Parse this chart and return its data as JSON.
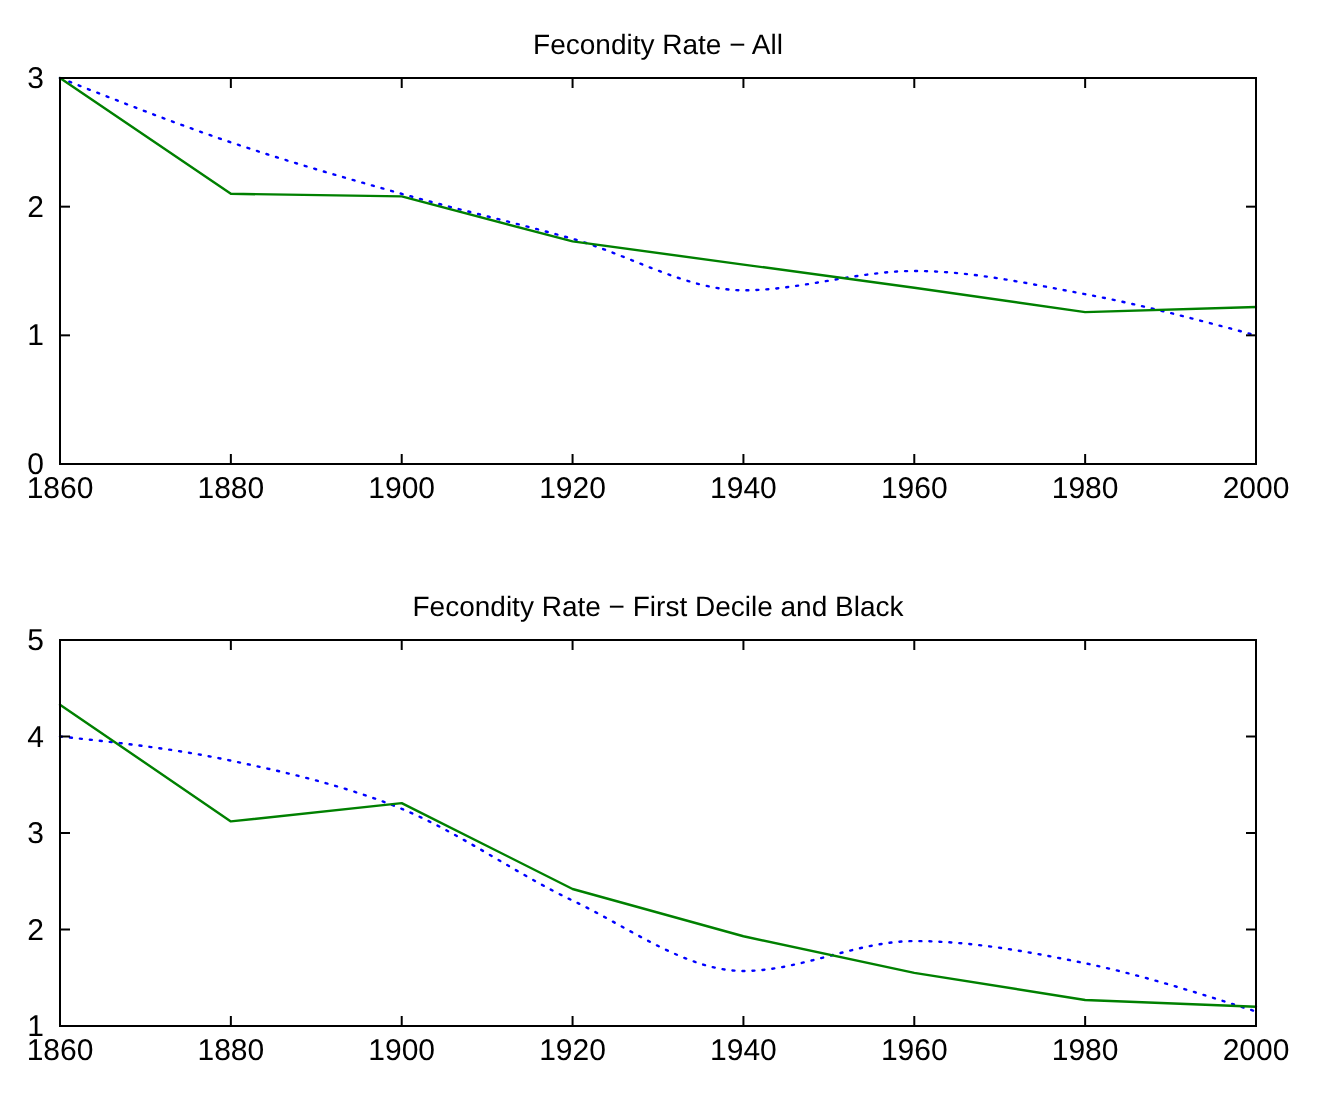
{
  "chart_data": [
    {
      "type": "line",
      "title": "Fecondity Rate − All",
      "x": [
        1860,
        1880,
        1900,
        1920,
        1940,
        1960,
        1980,
        2000
      ],
      "xlim": [
        1860,
        2000
      ],
      "xticks": [
        1860,
        1880,
        1900,
        1920,
        1940,
        1960,
        1980,
        2000
      ],
      "ylim": [
        0,
        3
      ],
      "yticks": [
        0,
        1,
        2,
        3
      ],
      "grid": false,
      "series": [
        {
          "color": "#0000ff",
          "line_style": "dotted",
          "values": [
            3.0,
            2.5,
            2.1,
            1.75,
            1.35,
            1.5,
            1.32,
            1.0
          ]
        },
        {
          "color": "#008000",
          "line_style": "solid",
          "values": [
            3.0,
            2.1,
            2.08,
            1.73,
            1.55,
            1.37,
            1.18,
            1.22
          ]
        }
      ]
    },
    {
      "type": "line",
      "title": "Fecondity Rate − First Decile and Black",
      "x": [
        1860,
        1880,
        1900,
        1920,
        1940,
        1960,
        1980,
        2000
      ],
      "xlim": [
        1860,
        2000
      ],
      "xticks": [
        1860,
        1880,
        1900,
        1920,
        1940,
        1960,
        1980,
        2000
      ],
      "ylim": [
        1,
        5
      ],
      "yticks": [
        1,
        2,
        3,
        4,
        5
      ],
      "grid": false,
      "series": [
        {
          "color": "#0000ff",
          "line_style": "dotted",
          "values": [
            4.0,
            3.75,
            3.25,
            2.3,
            1.57,
            1.88,
            1.65,
            1.15
          ]
        },
        {
          "color": "#008000",
          "line_style": "solid",
          "values": [
            4.33,
            3.12,
            3.31,
            2.42,
            1.93,
            1.55,
            1.27,
            1.2
          ]
        }
      ]
    }
  ]
}
